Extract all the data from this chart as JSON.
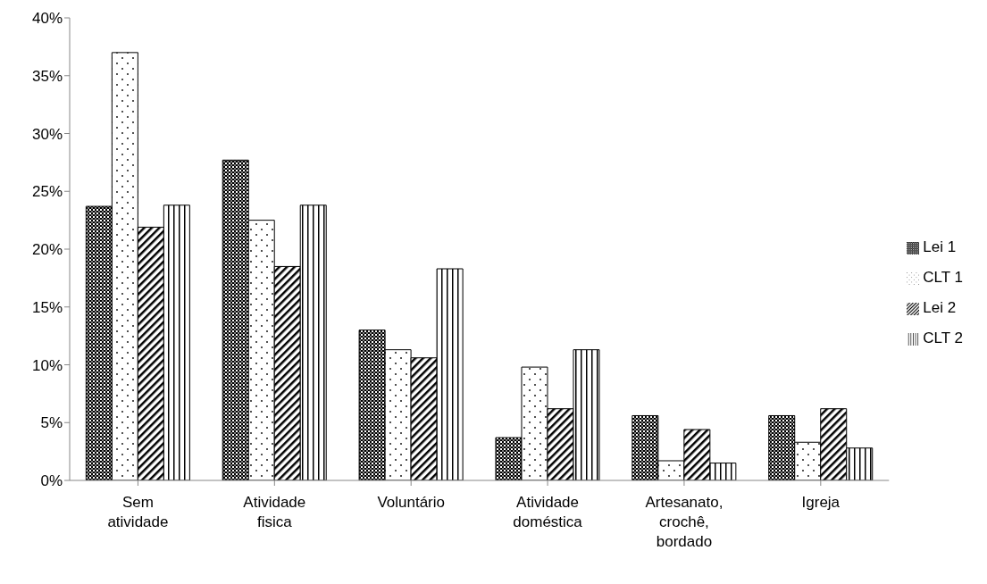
{
  "chart_data": {
    "type": "bar",
    "categories": [
      "Sem atividade",
      "Atividade fisica",
      "Voluntário",
      "Atividade doméstica",
      "Artesanato, crochê, bordado",
      "Igreja"
    ],
    "series": [
      {
        "name": "Lei 1",
        "color": "#000000",
        "values": [
          23.7,
          27.7,
          13.0,
          3.7,
          5.6,
          5.6
        ]
      },
      {
        "name": "CLT 1",
        "color": "#000000",
        "values": [
          37.0,
          22.5,
          11.3,
          9.8,
          1.7,
          3.3
        ]
      },
      {
        "name": "Lei 2",
        "color": "#000000",
        "values": [
          21.9,
          18.5,
          10.6,
          6.2,
          4.4,
          6.2
        ]
      },
      {
        "name": "CLT 2",
        "color": "#000000",
        "values": [
          23.8,
          23.8,
          18.3,
          11.3,
          1.5,
          2.8
        ]
      }
    ],
    "ylim": [
      0,
      40
    ],
    "yticks": [
      {
        "value": 0,
        "label": "0%"
      },
      {
        "value": 5,
        "label": "5%"
      },
      {
        "value": 10,
        "label": "10%"
      },
      {
        "value": 15,
        "label": "15%"
      },
      {
        "value": 20,
        "label": "20%"
      },
      {
        "value": 25,
        "label": "25%"
      },
      {
        "value": 30,
        "label": "30%"
      },
      {
        "value": 35,
        "label": "35%"
      },
      {
        "value": 40,
        "label": "40%"
      }
    ],
    "grid": false,
    "legend": "right"
  }
}
